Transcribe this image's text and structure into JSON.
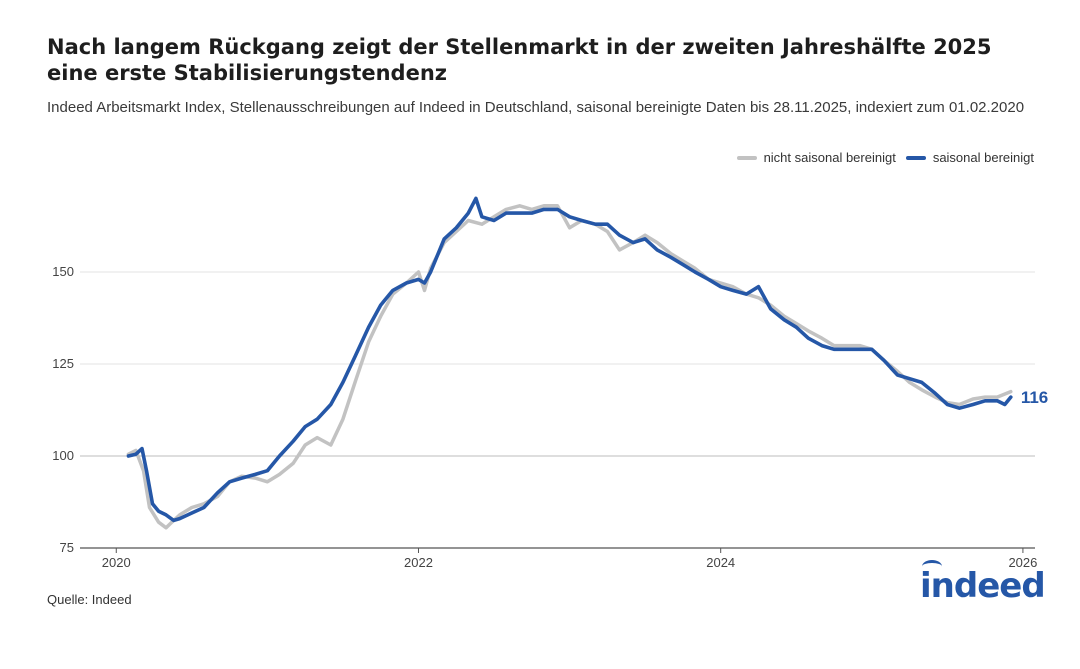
{
  "header": {
    "title": "Nach langem Rückgang zeigt der Stellenmarkt in der zweiten Jahreshälfte 2025 eine erste Stabilisierungstendenz",
    "subtitle": "Indeed Arbeitsmarkt Index, Stellenausschreibungen auf Indeed in Deutschland, saisonal bereinigte Daten bis 28.11.2025, indexiert zum 01.02.2020"
  },
  "footer": {
    "source": "Quelle: Indeed",
    "logo": "indeed"
  },
  "colors": {
    "adjusted": "#2557a7",
    "unadjusted": "#c2c2c2",
    "grid": "#e3e3e3",
    "axis": "#555555"
  },
  "chart_data": {
    "type": "line",
    "title": "Nach langem Rückgang zeigt der Stellenmarkt in der zweiten Jahreshälfte 2025 eine erste Stabilisierungstendenz",
    "xlabel": "",
    "ylabel": "",
    "xlim": [
      2020.0,
      2026.0
    ],
    "ylim": [
      75,
      175
    ],
    "yticks": [
      75,
      100,
      125,
      150
    ],
    "xticks": [
      2020,
      2022,
      2024,
      2026
    ],
    "legend": "top-right",
    "end_label": "116",
    "series": [
      {
        "name": "nicht saisonal bereinigt",
        "color": "#c2c2c2",
        "x": [
          2020.08,
          2020.13,
          2020.18,
          2020.22,
          2020.28,
          2020.33,
          2020.38,
          2020.42,
          2020.5,
          2020.58,
          2020.67,
          2020.75,
          2020.83,
          2020.92,
          2021.0,
          2021.08,
          2021.17,
          2021.25,
          2021.33,
          2021.42,
          2021.5,
          2021.58,
          2021.67,
          2021.75,
          2021.83,
          2021.92,
          2022.0,
          2022.04,
          2022.08,
          2022.17,
          2022.25,
          2022.33,
          2022.42,
          2022.5,
          2022.58,
          2022.67,
          2022.75,
          2022.83,
          2022.92,
          2023.0,
          2023.08,
          2023.17,
          2023.25,
          2023.33,
          2023.42,
          2023.5,
          2023.58,
          2023.67,
          2023.75,
          2023.83,
          2023.92,
          2024.0,
          2024.08,
          2024.17,
          2024.25,
          2024.33,
          2024.42,
          2024.5,
          2024.58,
          2024.67,
          2024.75,
          2024.83,
          2024.92,
          2025.0,
          2025.08,
          2025.17,
          2025.25,
          2025.33,
          2025.42,
          2025.5,
          2025.58,
          2025.67,
          2025.75,
          2025.83,
          2025.92
        ],
        "values": [
          100.5,
          101.5,
          96,
          86,
          82,
          80.5,
          82.5,
          84,
          86,
          87,
          89,
          93,
          94.5,
          94,
          93,
          95,
          98,
          103,
          105,
          103,
          110,
          120,
          131,
          138,
          144,
          147,
          150,
          145,
          151,
          158,
          161,
          164,
          163,
          165,
          167,
          168,
          167,
          168,
          168,
          162,
          164,
          163,
          161,
          156,
          158,
          160,
          158,
          155,
          153,
          151,
          148,
          147,
          146,
          144,
          143,
          141,
          138,
          136,
          134,
          132,
          130,
          130,
          130,
          129,
          126,
          123,
          120,
          118,
          116,
          114.5,
          114,
          115.5,
          116,
          116,
          117.5
        ]
      },
      {
        "name": "saisonal bereinigt",
        "color": "#2557a7",
        "x": [
          2020.08,
          2020.13,
          2020.17,
          2020.2,
          2020.24,
          2020.28,
          2020.33,
          2020.38,
          2020.42,
          2020.5,
          2020.58,
          2020.67,
          2020.75,
          2020.83,
          2020.92,
          2021.0,
          2021.08,
          2021.17,
          2021.25,
          2021.33,
          2021.42,
          2021.5,
          2021.58,
          2021.67,
          2021.75,
          2021.83,
          2021.92,
          2022.0,
          2022.04,
          2022.08,
          2022.17,
          2022.25,
          2022.33,
          2022.38,
          2022.42,
          2022.5,
          2022.58,
          2022.67,
          2022.75,
          2022.83,
          2022.92,
          2023.0,
          2023.08,
          2023.17,
          2023.25,
          2023.33,
          2023.42,
          2023.5,
          2023.58,
          2023.67,
          2023.75,
          2023.83,
          2023.92,
          2024.0,
          2024.08,
          2024.17,
          2024.25,
          2024.33,
          2024.42,
          2024.5,
          2024.58,
          2024.67,
          2024.75,
          2024.83,
          2024.92,
          2025.0,
          2025.08,
          2025.17,
          2025.25,
          2025.33,
          2025.42,
          2025.5,
          2025.58,
          2025.67,
          2025.75,
          2025.83,
          2025.88,
          2025.92
        ],
        "values": [
          100,
          100.5,
          102,
          96,
          87,
          85,
          84,
          82.5,
          83,
          84.5,
          86,
          90,
          93,
          94,
          95,
          96,
          100,
          104,
          108,
          110,
          114,
          120,
          127,
          135,
          141,
          145,
          147,
          148,
          147,
          150,
          159,
          162,
          166,
          170,
          165,
          164,
          166,
          166,
          166,
          167,
          167,
          165,
          164,
          163,
          163,
          160,
          158,
          159,
          156,
          154,
          152,
          150,
          148,
          146,
          145,
          144,
          146,
          140,
          137,
          135,
          132,
          130,
          129,
          129,
          129,
          129,
          126,
          122,
          121,
          120,
          117,
          114,
          113,
          114,
          115,
          115,
          114,
          116
        ]
      }
    ]
  }
}
